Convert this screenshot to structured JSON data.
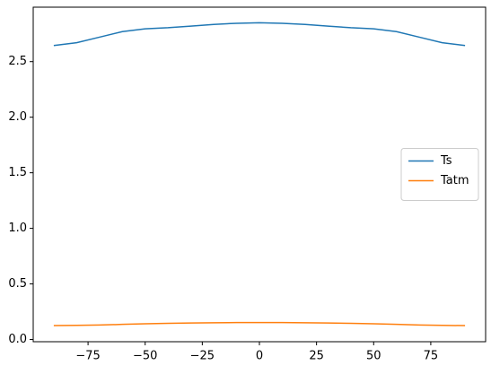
{
  "chart_data": {
    "type": "line",
    "x": [
      -90,
      -80,
      -70,
      -60,
      -50,
      -40,
      -30,
      -20,
      -10,
      0,
      10,
      20,
      30,
      40,
      50,
      60,
      70,
      80,
      90
    ],
    "series": [
      {
        "name": "Ts",
        "color": "#1f77b4",
        "values": [
          2.645,
          2.67,
          2.72,
          2.77,
          2.795,
          2.805,
          2.82,
          2.835,
          2.845,
          2.85,
          2.845,
          2.835,
          2.82,
          2.805,
          2.795,
          2.77,
          2.72,
          2.67,
          2.645
        ]
      },
      {
        "name": "Tatm",
        "color": "#ff7f0e",
        "values": [
          0.125,
          0.127,
          0.13,
          0.136,
          0.141,
          0.145,
          0.148,
          0.15,
          0.152,
          0.152,
          0.152,
          0.15,
          0.148,
          0.145,
          0.141,
          0.136,
          0.13,
          0.127,
          0.125
        ]
      }
    ],
    "xlim": [
      -99,
      99
    ],
    "ylim": [
      -0.02,
      2.99
    ],
    "xticks": [
      {
        "value": -75,
        "label": "−75"
      },
      {
        "value": -50,
        "label": "−50"
      },
      {
        "value": -25,
        "label": "−25"
      },
      0,
      25,
      50,
      75
    ],
    "yticks": [
      {
        "value": 0,
        "label": "0.0"
      },
      0.5,
      {
        "value": 1,
        "label": "1.0"
      },
      1.5,
      {
        "value": 2,
        "label": "2.0"
      },
      2.5
    ],
    "grid": false,
    "legend": "right"
  }
}
